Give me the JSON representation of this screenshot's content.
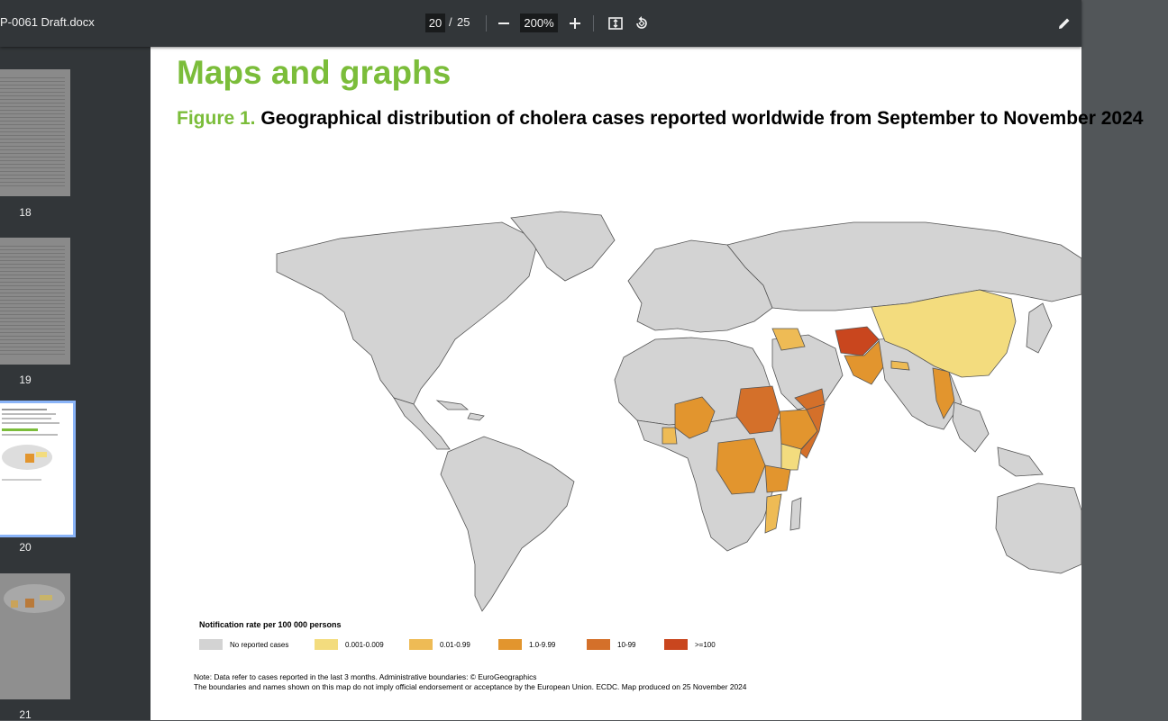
{
  "toolbar": {
    "doc_title": "P-0061 Draft.docx",
    "current_page": "20",
    "page_separator": "/",
    "total_pages": "25",
    "zoom": "200%",
    "icons": [
      "minus-icon",
      "plus-icon",
      "fit-page-icon",
      "rotate-icon",
      "edit-icon"
    ]
  },
  "sidebar": {
    "thumbnails": [
      {
        "page": "18"
      },
      {
        "page": "19"
      },
      {
        "page": "20",
        "selected": true
      },
      {
        "page": "21"
      }
    ],
    "selected_color": "#8ab4f8"
  },
  "page": {
    "heading": "Maps and graphs",
    "figure_label": "Figure 1.",
    "figure_caption": "Geographical distribution of cholera cases reported worldwide from September to November 2024",
    "legend": {
      "title": "Notification rate per 100 000 persons",
      "items": [
        {
          "label": "No reported cases",
          "color": "#d3d3d3"
        },
        {
          "label": "0.001-0.009",
          "color": "#f3dc7e"
        },
        {
          "label": "0.01-0.99",
          "color": "#eebb55"
        },
        {
          "label": "1.0-9.99",
          "color": "#e2952e"
        },
        {
          "label": "10-99",
          "color": "#d4702a"
        },
        {
          "label": ">=100",
          "color": "#c9461e"
        }
      ]
    },
    "note_line1": "Note: Data refer to cases reported in the last 3 months. Administrative boundaries: © EuroGeographics",
    "note_line2": "The boundaries and names shown on this map do not imply official endorsement or acceptance by the European Union. ECDC. Map produced on 25 November 2024"
  },
  "colors": {
    "accent_green": "#7bbd3a",
    "toolbar_bg": "#323639",
    "viewer_bg": "#525659"
  }
}
